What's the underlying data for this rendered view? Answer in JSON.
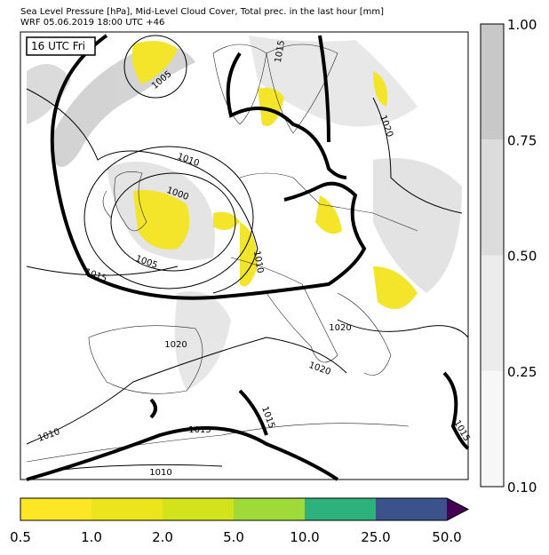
{
  "header": {
    "title": "Sea Level Pressure [hPa], Mid-Level Cloud Cover, Total prec. in the last hour [mm]",
    "subtitle": "WRF 05.06.2019 18:00 UTC +46"
  },
  "map": {
    "time_label": "16 UTC Fri",
    "contour_labels": [
      "1005",
      "1010",
      "1000",
      "1005",
      "1015",
      "1010",
      "1015",
      "1020",
      "1020",
      "1020",
      "1020",
      "1015",
      "1010",
      "1015",
      "1015",
      "1010"
    ]
  },
  "cloud_colorbar": {
    "ticks": [
      "1.00",
      "0.75",
      "0.50",
      "0.25",
      "0.10"
    ],
    "colors": [
      "#c8c8c8",
      "#dcdcdc",
      "#ececec",
      "#f7f7f7"
    ]
  },
  "precip_colorbar": {
    "ticks": [
      "0.5",
      "1.0",
      "2.0",
      "5.0",
      "10.0",
      "25.0",
      "50.0"
    ],
    "colors": [
      "#fde725",
      "#ebe51a",
      "#d2e21b",
      "#a0da39",
      "#2db27d",
      "#3b528b"
    ],
    "extend_color": "#440154"
  }
}
